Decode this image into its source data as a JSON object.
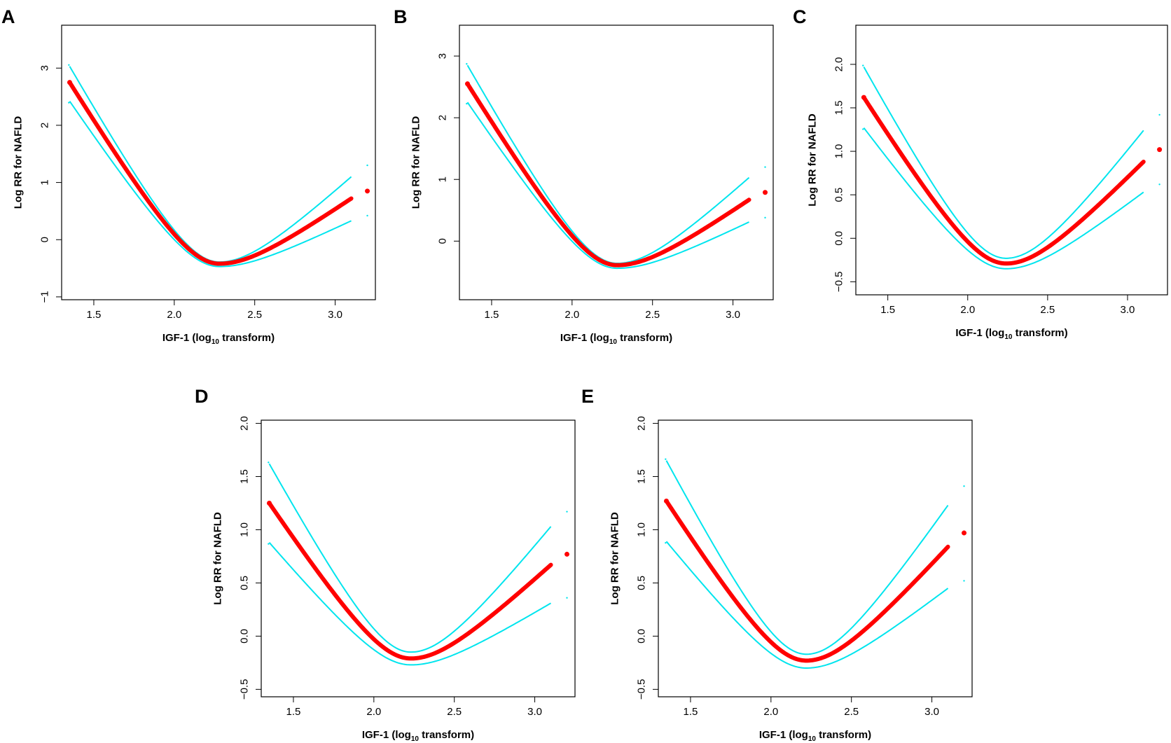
{
  "figure": {
    "colors": {
      "estimate": "#ff0000",
      "ci": "#00e5ee",
      "frame": "#000000"
    }
  },
  "chart_data": [
    {
      "panel": "A",
      "type": "line",
      "xlabel_pre": "IGF-1 (log",
      "xlabel_sub": "10",
      "xlabel_post": " transform)",
      "ylabel": "Log RR for NAFLD",
      "xlim": [
        1.3,
        3.25
      ],
      "ylim": [
        -1.05,
        3.75
      ],
      "xticks": [
        1.5,
        2.0,
        2.5,
        3.0
      ],
      "yticks": [
        -1,
        0,
        1,
        2,
        3
      ],
      "x_range": [
        1.35,
        3.1
      ],
      "estimate": {
        "start": 2.75,
        "min_x": 2.28,
        "min_y": -0.42,
        "end": 0.72,
        "curvature": 0.3
      },
      "ci_upper": {
        "start": 3.03,
        "min_y": -0.39,
        "end": 1.1
      },
      "ci_lower": {
        "start": 2.42,
        "min_y": -0.47,
        "end": 0.33
      },
      "outlier": {
        "x": 3.2,
        "y": 0.85,
        "upper": 1.3,
        "lower": 0.42
      }
    },
    {
      "panel": "B",
      "type": "line",
      "xlabel_pre": "IGF-1 (log",
      "xlabel_sub": "10",
      "xlabel_post": " transform)",
      "ylabel": "Log RR for NAFLD",
      "xlim": [
        1.3,
        3.25
      ],
      "ylim": [
        -0.95,
        3.5
      ],
      "xticks": [
        1.5,
        2.0,
        2.5,
        3.0
      ],
      "yticks": [
        0,
        1,
        2,
        3
      ],
      "x_range": [
        1.35,
        3.1
      ],
      "estimate": {
        "start": 2.55,
        "min_x": 2.28,
        "min_y": -0.39,
        "end": 0.67,
        "curvature": 0.3
      },
      "ci_upper": {
        "start": 2.85,
        "min_y": -0.36,
        "end": 1.03
      },
      "ci_lower": {
        "start": 2.25,
        "min_y": -0.44,
        "end": 0.31
      },
      "outlier": {
        "x": 3.2,
        "y": 0.79,
        "upper": 1.2,
        "lower": 0.38
      }
    },
    {
      "panel": "C",
      "type": "line",
      "xlabel_pre": "IGF-1 (log",
      "xlabel_sub": "10",
      "xlabel_post": " transform)",
      "ylabel": "Log RR for NAFLD",
      "xlim": [
        1.3,
        3.25
      ],
      "ylim": [
        -0.65,
        2.45
      ],
      "xticks": [
        1.5,
        2.0,
        2.5,
        3.0
      ],
      "yticks": [
        -0.5,
        0.0,
        0.5,
        1.0,
        1.5,
        2.0
      ],
      "x_range": [
        1.35,
        3.1
      ],
      "estimate": {
        "start": 1.62,
        "min_x": 2.24,
        "min_y": -0.29,
        "end": 0.88,
        "curvature": 0.3
      },
      "ci_upper": {
        "start": 1.97,
        "min_y": -0.23,
        "end": 1.24
      },
      "ci_lower": {
        "start": 1.27,
        "min_y": -0.35,
        "end": 0.53
      },
      "outlier": {
        "x": 3.2,
        "y": 1.02,
        "upper": 1.42,
        "lower": 0.62
      }
    },
    {
      "panel": "D",
      "type": "line",
      "xlabel_pre": "IGF-1 (log",
      "xlabel_sub": "10",
      "xlabel_post": " transform)",
      "ylabel": "Log RR for NAFLD",
      "xlim": [
        1.3,
        3.25
      ],
      "ylim": [
        -0.57,
        2.03
      ],
      "xticks": [
        1.5,
        2.0,
        2.5,
        3.0
      ],
      "yticks": [
        -0.5,
        0.0,
        0.5,
        1.0,
        1.5,
        2.0
      ],
      "x_range": [
        1.35,
        3.1
      ],
      "estimate": {
        "start": 1.25,
        "min_x": 2.23,
        "min_y": -0.21,
        "end": 0.67,
        "curvature": 0.3
      },
      "ci_upper": {
        "start": 1.62,
        "min_y": -0.15,
        "end": 1.03
      },
      "ci_lower": {
        "start": 0.88,
        "min_y": -0.27,
        "end": 0.31
      },
      "outlier": {
        "x": 3.2,
        "y": 0.77,
        "upper": 1.17,
        "lower": 0.36
      }
    },
    {
      "panel": "E",
      "type": "line",
      "xlabel_pre": "IGF-1 (log",
      "xlabel_sub": "10",
      "xlabel_post": " transform)",
      "ylabel": "Log RR for NAFLD",
      "xlim": [
        1.3,
        3.25
      ],
      "ylim": [
        -0.57,
        2.03
      ],
      "xticks": [
        1.5,
        2.0,
        2.5,
        3.0
      ],
      "yticks": [
        -0.5,
        0.0,
        0.5,
        1.0,
        1.5,
        2.0
      ],
      "x_range": [
        1.35,
        3.1
      ],
      "estimate": {
        "start": 1.27,
        "min_x": 2.22,
        "min_y": -0.23,
        "end": 0.84,
        "curvature": 0.3
      },
      "ci_upper": {
        "start": 1.65,
        "min_y": -0.17,
        "end": 1.23
      },
      "ci_lower": {
        "start": 0.89,
        "min_y": -0.3,
        "end": 0.45
      },
      "outlier": {
        "x": 3.2,
        "y": 0.97,
        "upper": 1.41,
        "lower": 0.52
      }
    }
  ]
}
